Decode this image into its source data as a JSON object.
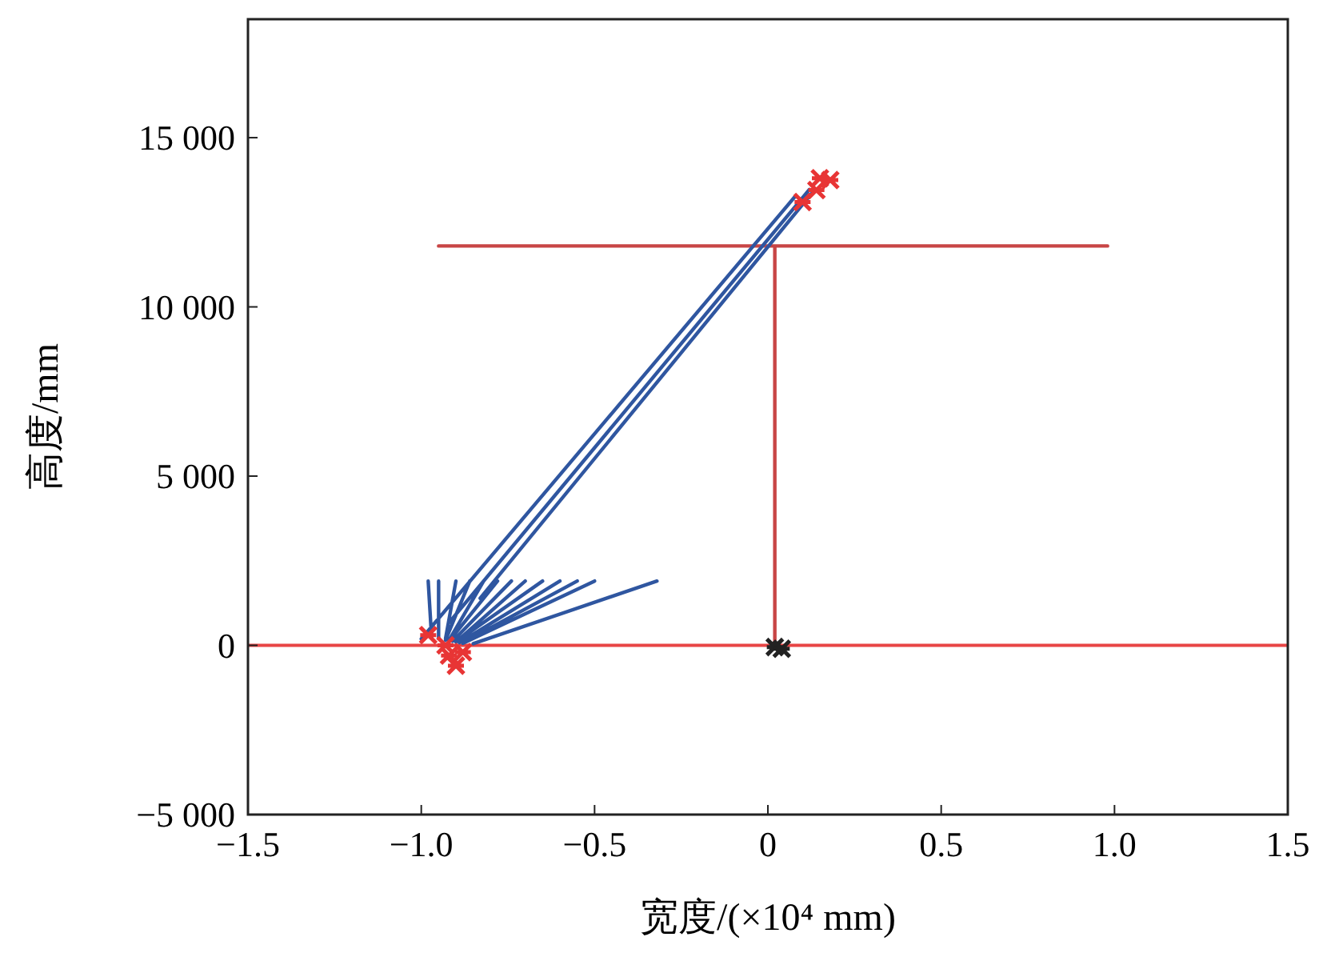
{
  "chart_data": {
    "type": "line",
    "xlabel": "宽度/(×10⁴ mm)",
    "ylabel": "高度/mm",
    "xlim": [
      -1.5,
      1.5
    ],
    "ylim": [
      -5000,
      18500
    ],
    "xticks": [
      {
        "value": -1.5,
        "label": "−1.5"
      },
      {
        "value": -1,
        "label": "−1.0"
      },
      {
        "value": -0.5,
        "label": "−0.5"
      },
      {
        "value": 0,
        "label": "0"
      },
      {
        "value": 0.5,
        "label": "0.5"
      },
      {
        "value": 1,
        "label": "1.0"
      },
      {
        "value": 1.5,
        "label": "1.5"
      }
    ],
    "yticks": [
      {
        "value": -5000,
        "label": "−5 000"
      },
      {
        "value": 0,
        "label": "0"
      },
      {
        "value": 5000,
        "label": "5 000"
      },
      {
        "value": 10000,
        "label": "10 000"
      },
      {
        "value": 15000,
        "label": "15 000"
      }
    ],
    "grid": false,
    "ref_lines": [
      {
        "axis": "y",
        "value": 0,
        "color": "#e84545"
      }
    ],
    "series": [
      {
        "color": "#c84545",
        "marker": "none",
        "x": [
          0.02,
          0.02,
          null,
          -0.95,
          0.98
        ],
        "values": [
          0,
          11800,
          null,
          11800,
          11800
        ]
      },
      {
        "color": "#2f56a0",
        "marker": "none",
        "x": [
          -1.0,
          0.08,
          null,
          -0.92,
          0.12,
          null,
          -0.83,
          0.13,
          null,
          -0.97,
          -0.98,
          null,
          -0.95,
          -0.95,
          null,
          -0.93,
          -0.9,
          null,
          -0.93,
          -0.86,
          null,
          -0.92,
          -0.82,
          null,
          -0.92,
          -0.78,
          null,
          -0.91,
          -0.74,
          null,
          -0.9,
          -0.7,
          null,
          -0.9,
          -0.65,
          null,
          -0.89,
          -0.6,
          null,
          -0.88,
          -0.55,
          null,
          -0.88,
          -0.5,
          null,
          -0.85,
          -0.32
        ],
        "values": [
          190,
          13280,
          null,
          670,
          13470,
          null,
          1390,
          13400,
          null,
          200,
          1900,
          null,
          200,
          1900,
          null,
          200,
          1900,
          null,
          150,
          1900,
          null,
          150,
          1900,
          null,
          120,
          1900,
          null,
          120,
          1900,
          null,
          100,
          1900,
          null,
          100,
          1900,
          null,
          80,
          1900,
          null,
          80,
          1900,
          null,
          60,
          1900,
          null,
          50,
          1900
        ]
      },
      {
        "type": "scatter",
        "color": "#e83535",
        "marker": "cross",
        "x": [
          -0.98,
          -0.92,
          -0.9,
          -0.88,
          -0.93,
          0.1,
          0.14,
          0.18,
          0.15
        ],
        "values": [
          300,
          -300,
          -600,
          -200,
          0,
          13100,
          13450,
          13750,
          13800
        ]
      },
      {
        "type": "scatter",
        "color": "#222222",
        "marker": "cross",
        "x": [
          0.02,
          0.04
        ],
        "values": [
          -50,
          -100
        ]
      }
    ]
  }
}
